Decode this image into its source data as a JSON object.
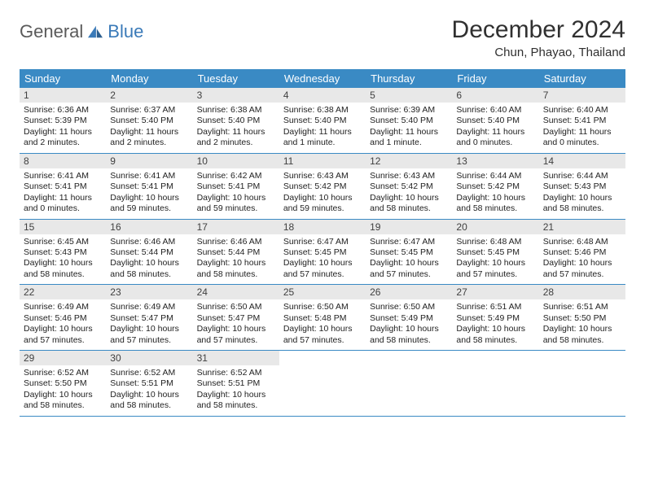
{
  "brand": {
    "part1": "General",
    "part2": "Blue"
  },
  "title": "December 2024",
  "location": "Chun, Phayao, Thailand",
  "colors": {
    "header_bg": "#3a8ac4",
    "header_text": "#ffffff",
    "daynum_bg": "#e8e8e8",
    "body_text": "#222222",
    "row_border": "#3a8ac4",
    "brand_gray": "#5a5a5a",
    "brand_blue": "#3a7ab8",
    "page_bg": "#ffffff"
  },
  "typography": {
    "title_fontsize": 30,
    "location_fontsize": 15,
    "header_fontsize": 13,
    "daynum_fontsize": 12,
    "body_fontsize": 10.5,
    "logo_fontsize": 22
  },
  "weekdays": [
    "Sunday",
    "Monday",
    "Tuesday",
    "Wednesday",
    "Thursday",
    "Friday",
    "Saturday"
  ],
  "weeks": [
    [
      {
        "day": "1",
        "sunrise": "Sunrise: 6:36 AM",
        "sunset": "Sunset: 5:39 PM",
        "daylight": "Daylight: 11 hours and 2 minutes."
      },
      {
        "day": "2",
        "sunrise": "Sunrise: 6:37 AM",
        "sunset": "Sunset: 5:40 PM",
        "daylight": "Daylight: 11 hours and 2 minutes."
      },
      {
        "day": "3",
        "sunrise": "Sunrise: 6:38 AM",
        "sunset": "Sunset: 5:40 PM",
        "daylight": "Daylight: 11 hours and 2 minutes."
      },
      {
        "day": "4",
        "sunrise": "Sunrise: 6:38 AM",
        "sunset": "Sunset: 5:40 PM",
        "daylight": "Daylight: 11 hours and 1 minute."
      },
      {
        "day": "5",
        "sunrise": "Sunrise: 6:39 AM",
        "sunset": "Sunset: 5:40 PM",
        "daylight": "Daylight: 11 hours and 1 minute."
      },
      {
        "day": "6",
        "sunrise": "Sunrise: 6:40 AM",
        "sunset": "Sunset: 5:40 PM",
        "daylight": "Daylight: 11 hours and 0 minutes."
      },
      {
        "day": "7",
        "sunrise": "Sunrise: 6:40 AM",
        "sunset": "Sunset: 5:41 PM",
        "daylight": "Daylight: 11 hours and 0 minutes."
      }
    ],
    [
      {
        "day": "8",
        "sunrise": "Sunrise: 6:41 AM",
        "sunset": "Sunset: 5:41 PM",
        "daylight": "Daylight: 11 hours and 0 minutes."
      },
      {
        "day": "9",
        "sunrise": "Sunrise: 6:41 AM",
        "sunset": "Sunset: 5:41 PM",
        "daylight": "Daylight: 10 hours and 59 minutes."
      },
      {
        "day": "10",
        "sunrise": "Sunrise: 6:42 AM",
        "sunset": "Sunset: 5:41 PM",
        "daylight": "Daylight: 10 hours and 59 minutes."
      },
      {
        "day": "11",
        "sunrise": "Sunrise: 6:43 AM",
        "sunset": "Sunset: 5:42 PM",
        "daylight": "Daylight: 10 hours and 59 minutes."
      },
      {
        "day": "12",
        "sunrise": "Sunrise: 6:43 AM",
        "sunset": "Sunset: 5:42 PM",
        "daylight": "Daylight: 10 hours and 58 minutes."
      },
      {
        "day": "13",
        "sunrise": "Sunrise: 6:44 AM",
        "sunset": "Sunset: 5:42 PM",
        "daylight": "Daylight: 10 hours and 58 minutes."
      },
      {
        "day": "14",
        "sunrise": "Sunrise: 6:44 AM",
        "sunset": "Sunset: 5:43 PM",
        "daylight": "Daylight: 10 hours and 58 minutes."
      }
    ],
    [
      {
        "day": "15",
        "sunrise": "Sunrise: 6:45 AM",
        "sunset": "Sunset: 5:43 PM",
        "daylight": "Daylight: 10 hours and 58 minutes."
      },
      {
        "day": "16",
        "sunrise": "Sunrise: 6:46 AM",
        "sunset": "Sunset: 5:44 PM",
        "daylight": "Daylight: 10 hours and 58 minutes."
      },
      {
        "day": "17",
        "sunrise": "Sunrise: 6:46 AM",
        "sunset": "Sunset: 5:44 PM",
        "daylight": "Daylight: 10 hours and 58 minutes."
      },
      {
        "day": "18",
        "sunrise": "Sunrise: 6:47 AM",
        "sunset": "Sunset: 5:45 PM",
        "daylight": "Daylight: 10 hours and 57 minutes."
      },
      {
        "day": "19",
        "sunrise": "Sunrise: 6:47 AM",
        "sunset": "Sunset: 5:45 PM",
        "daylight": "Daylight: 10 hours and 57 minutes."
      },
      {
        "day": "20",
        "sunrise": "Sunrise: 6:48 AM",
        "sunset": "Sunset: 5:45 PM",
        "daylight": "Daylight: 10 hours and 57 minutes."
      },
      {
        "day": "21",
        "sunrise": "Sunrise: 6:48 AM",
        "sunset": "Sunset: 5:46 PM",
        "daylight": "Daylight: 10 hours and 57 minutes."
      }
    ],
    [
      {
        "day": "22",
        "sunrise": "Sunrise: 6:49 AM",
        "sunset": "Sunset: 5:46 PM",
        "daylight": "Daylight: 10 hours and 57 minutes."
      },
      {
        "day": "23",
        "sunrise": "Sunrise: 6:49 AM",
        "sunset": "Sunset: 5:47 PM",
        "daylight": "Daylight: 10 hours and 57 minutes."
      },
      {
        "day": "24",
        "sunrise": "Sunrise: 6:50 AM",
        "sunset": "Sunset: 5:47 PM",
        "daylight": "Daylight: 10 hours and 57 minutes."
      },
      {
        "day": "25",
        "sunrise": "Sunrise: 6:50 AM",
        "sunset": "Sunset: 5:48 PM",
        "daylight": "Daylight: 10 hours and 57 minutes."
      },
      {
        "day": "26",
        "sunrise": "Sunrise: 6:50 AM",
        "sunset": "Sunset: 5:49 PM",
        "daylight": "Daylight: 10 hours and 58 minutes."
      },
      {
        "day": "27",
        "sunrise": "Sunrise: 6:51 AM",
        "sunset": "Sunset: 5:49 PM",
        "daylight": "Daylight: 10 hours and 58 minutes."
      },
      {
        "day": "28",
        "sunrise": "Sunrise: 6:51 AM",
        "sunset": "Sunset: 5:50 PM",
        "daylight": "Daylight: 10 hours and 58 minutes."
      }
    ],
    [
      {
        "day": "29",
        "sunrise": "Sunrise: 6:52 AM",
        "sunset": "Sunset: 5:50 PM",
        "daylight": "Daylight: 10 hours and 58 minutes."
      },
      {
        "day": "30",
        "sunrise": "Sunrise: 6:52 AM",
        "sunset": "Sunset: 5:51 PM",
        "daylight": "Daylight: 10 hours and 58 minutes."
      },
      {
        "day": "31",
        "sunrise": "Sunrise: 6:52 AM",
        "sunset": "Sunset: 5:51 PM",
        "daylight": "Daylight: 10 hours and 58 minutes."
      },
      {
        "empty": true
      },
      {
        "empty": true
      },
      {
        "empty": true
      },
      {
        "empty": true
      }
    ]
  ]
}
